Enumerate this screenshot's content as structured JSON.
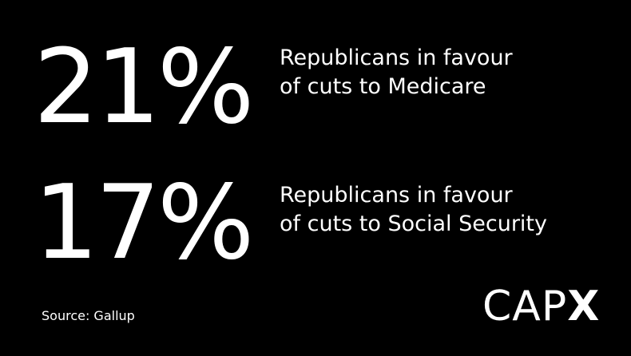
{
  "stats": [
    {
      "value": "21%",
      "label_line1": "Republicans in favour",
      "label_line2": "of cuts to Medicare"
    },
    {
      "value": "17%",
      "label_line1": "Republicans in favour",
      "label_line2": "of cuts to Social Security"
    }
  ],
  "source": "Source: Gallup",
  "logo": {
    "light_text": "CAP",
    "bold_text": "X"
  },
  "colors": {
    "background": "#000000",
    "text": "#ffffff"
  }
}
